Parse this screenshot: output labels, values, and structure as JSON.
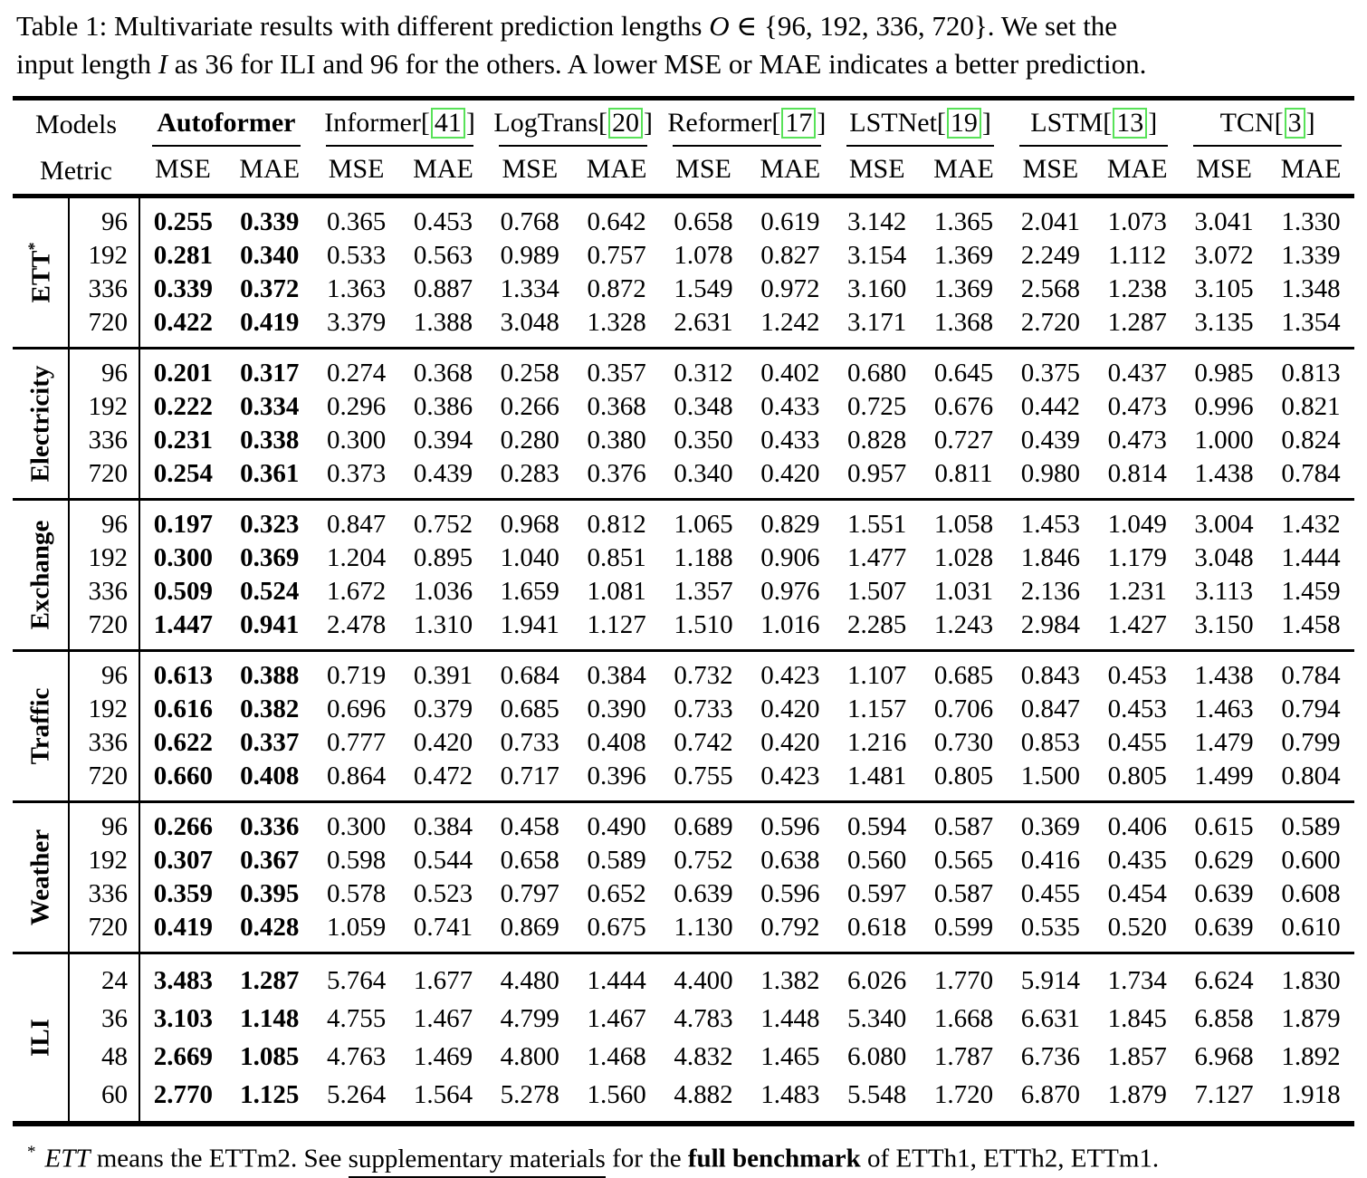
{
  "caption": {
    "lines": [
      {
        "segments": [
          {
            "t": "Table 1: Multivariate results with different prediction lengths ",
            "style": "plain"
          },
          {
            "t": "O",
            "style": "math"
          },
          {
            "t": " ∈ {96, 192, 336, 720}. We set the",
            "style": "plain"
          }
        ]
      },
      {
        "segments": [
          {
            "t": "input length ",
            "style": "plain"
          },
          {
            "t": "I",
            "style": "math"
          },
          {
            "t": " as 36 for ILI and 96 for the others. A lower MSE or MAE indicates a better prediction.",
            "style": "plain"
          }
        ]
      }
    ]
  },
  "table": {
    "corner": {
      "models": "Models",
      "metric": "Metric"
    },
    "cite_brackets": {
      "open": "[",
      "close": "]"
    },
    "link_box_color": "#58e258",
    "metrics": [
      "MSE",
      "MAE"
    ],
    "models": [
      {
        "name": "Autoformer",
        "cite": null,
        "bold": true
      },
      {
        "name": "Informer",
        "cite": "41",
        "bold": false
      },
      {
        "name": "LogTrans",
        "cite": "20",
        "bold": false
      },
      {
        "name": "Reformer",
        "cite": "17",
        "bold": false
      },
      {
        "name": "LSTNet",
        "cite": "19",
        "bold": false
      },
      {
        "name": "LSTM",
        "cite": "13",
        "bold": false
      },
      {
        "name": "TCN",
        "cite": "3",
        "bold": false
      }
    ],
    "blocks": [
      {
        "dataset": "ETT",
        "sup": "*",
        "rows": [
          {
            "len": "96",
            "values": [
              "0.255",
              "0.339",
              "0.365",
              "0.453",
              "0.768",
              "0.642",
              "0.658",
              "0.619",
              "3.142",
              "1.365",
              "2.041",
              "1.073",
              "3.041",
              "1.330"
            ]
          },
          {
            "len": "192",
            "values": [
              "0.281",
              "0.340",
              "0.533",
              "0.563",
              "0.989",
              "0.757",
              "1.078",
              "0.827",
              "3.154",
              "1.369",
              "2.249",
              "1.112",
              "3.072",
              "1.339"
            ]
          },
          {
            "len": "336",
            "values": [
              "0.339",
              "0.372",
              "1.363",
              "0.887",
              "1.334",
              "0.872",
              "1.549",
              "0.972",
              "3.160",
              "1.369",
              "2.568",
              "1.238",
              "3.105",
              "1.348"
            ]
          },
          {
            "len": "720",
            "values": [
              "0.422",
              "0.419",
              "3.379",
              "1.388",
              "3.048",
              "1.328",
              "2.631",
              "1.242",
              "3.171",
              "1.368",
              "2.720",
              "1.287",
              "3.135",
              "1.354"
            ]
          }
        ]
      },
      {
        "dataset": "Electricity",
        "sup": null,
        "rows": [
          {
            "len": "96",
            "values": [
              "0.201",
              "0.317",
              "0.274",
              "0.368",
              "0.258",
              "0.357",
              "0.312",
              "0.402",
              "0.680",
              "0.645",
              "0.375",
              "0.437",
              "0.985",
              "0.813"
            ]
          },
          {
            "len": "192",
            "values": [
              "0.222",
              "0.334",
              "0.296",
              "0.386",
              "0.266",
              "0.368",
              "0.348",
              "0.433",
              "0.725",
              "0.676",
              "0.442",
              "0.473",
              "0.996",
              "0.821"
            ]
          },
          {
            "len": "336",
            "values": [
              "0.231",
              "0.338",
              "0.300",
              "0.394",
              "0.280",
              "0.380",
              "0.350",
              "0.433",
              "0.828",
              "0.727",
              "0.439",
              "0.473",
              "1.000",
              "0.824"
            ]
          },
          {
            "len": "720",
            "values": [
              "0.254",
              "0.361",
              "0.373",
              "0.439",
              "0.283",
              "0.376",
              "0.340",
              "0.420",
              "0.957",
              "0.811",
              "0.980",
              "0.814",
              "1.438",
              "0.784"
            ]
          }
        ]
      },
      {
        "dataset": "Exchange",
        "sup": null,
        "rows": [
          {
            "len": "96",
            "values": [
              "0.197",
              "0.323",
              "0.847",
              "0.752",
              "0.968",
              "0.812",
              "1.065",
              "0.829",
              "1.551",
              "1.058",
              "1.453",
              "1.049",
              "3.004",
              "1.432"
            ]
          },
          {
            "len": "192",
            "values": [
              "0.300",
              "0.369",
              "1.204",
              "0.895",
              "1.040",
              "0.851",
              "1.188",
              "0.906",
              "1.477",
              "1.028",
              "1.846",
              "1.179",
              "3.048",
              "1.444"
            ]
          },
          {
            "len": "336",
            "values": [
              "0.509",
              "0.524",
              "1.672",
              "1.036",
              "1.659",
              "1.081",
              "1.357",
              "0.976",
              "1.507",
              "1.031",
              "2.136",
              "1.231",
              "3.113",
              "1.459"
            ]
          },
          {
            "len": "720",
            "values": [
              "1.447",
              "0.941",
              "2.478",
              "1.310",
              "1.941",
              "1.127",
              "1.510",
              "1.016",
              "2.285",
              "1.243",
              "2.984",
              "1.427",
              "3.150",
              "1.458"
            ]
          }
        ]
      },
      {
        "dataset": "Traffic",
        "sup": null,
        "rows": [
          {
            "len": "96",
            "values": [
              "0.613",
              "0.388",
              "0.719",
              "0.391",
              "0.684",
              "0.384",
              "0.732",
              "0.423",
              "1.107",
              "0.685",
              "0.843",
              "0.453",
              "1.438",
              "0.784"
            ]
          },
          {
            "len": "192",
            "values": [
              "0.616",
              "0.382",
              "0.696",
              "0.379",
              "0.685",
              "0.390",
              "0.733",
              "0.420",
              "1.157",
              "0.706",
              "0.847",
              "0.453",
              "1.463",
              "0.794"
            ]
          },
          {
            "len": "336",
            "values": [
              "0.622",
              "0.337",
              "0.777",
              "0.420",
              "0.733",
              "0.408",
              "0.742",
              "0.420",
              "1.216",
              "0.730",
              "0.853",
              "0.455",
              "1.479",
              "0.799"
            ]
          },
          {
            "len": "720",
            "values": [
              "0.660",
              "0.408",
              "0.864",
              "0.472",
              "0.717",
              "0.396",
              "0.755",
              "0.423",
              "1.481",
              "0.805",
              "1.500",
              "0.805",
              "1.499",
              "0.804"
            ]
          }
        ]
      },
      {
        "dataset": "Weather",
        "sup": null,
        "rows": [
          {
            "len": "96",
            "values": [
              "0.266",
              "0.336",
              "0.300",
              "0.384",
              "0.458",
              "0.490",
              "0.689",
              "0.596",
              "0.594",
              "0.587",
              "0.369",
              "0.406",
              "0.615",
              "0.589"
            ]
          },
          {
            "len": "192",
            "values": [
              "0.307",
              "0.367",
              "0.598",
              "0.544",
              "0.658",
              "0.589",
              "0.752",
              "0.638",
              "0.560",
              "0.565",
              "0.416",
              "0.435",
              "0.629",
              "0.600"
            ]
          },
          {
            "len": "336",
            "values": [
              "0.359",
              "0.395",
              "0.578",
              "0.523",
              "0.797",
              "0.652",
              "0.639",
              "0.596",
              "0.597",
              "0.587",
              "0.455",
              "0.454",
              "0.639",
              "0.608"
            ]
          },
          {
            "len": "720",
            "values": [
              "0.419",
              "0.428",
              "1.059",
              "0.741",
              "0.869",
              "0.675",
              "1.130",
              "0.792",
              "0.618",
              "0.599",
              "0.535",
              "0.520",
              "0.639",
              "0.610"
            ]
          }
        ]
      },
      {
        "dataset": "ILI",
        "sup": null,
        "rows": [
          {
            "len": "24",
            "values": [
              "3.483",
              "1.287",
              "5.764",
              "1.677",
              "4.480",
              "1.444",
              "4.400",
              "1.382",
              "6.026",
              "1.770",
              "5.914",
              "1.734",
              "6.624",
              "1.830"
            ]
          },
          {
            "len": "36",
            "values": [
              "3.103",
              "1.148",
              "4.755",
              "1.467",
              "4.799",
              "1.467",
              "4.783",
              "1.448",
              "5.340",
              "1.668",
              "6.631",
              "1.845",
              "6.858",
              "1.879"
            ]
          },
          {
            "len": "48",
            "values": [
              "2.669",
              "1.085",
              "4.763",
              "1.469",
              "4.800",
              "1.468",
              "4.832",
              "1.465",
              "6.080",
              "1.787",
              "6.736",
              "1.857",
              "6.968",
              "1.892"
            ]
          },
          {
            "len": "60",
            "values": [
              "2.770",
              "1.125",
              "5.264",
              "1.564",
              "5.278",
              "1.560",
              "4.882",
              "1.483",
              "5.548",
              "1.720",
              "6.870",
              "1.879",
              "7.127",
              "1.918"
            ]
          }
        ]
      }
    ]
  },
  "footnote": {
    "marker": "*",
    "segments": [
      {
        "t": "ETT",
        "style": "italic"
      },
      {
        "t": " means the ETTm2. See ",
        "style": "plain"
      },
      {
        "t": "supplementary materials",
        "style": "underline"
      },
      {
        "t": " for the ",
        "style": "plain"
      },
      {
        "t": "full benchmark",
        "style": "bold"
      },
      {
        "t": " of ETTh1, ETTh2, ETTm1.",
        "style": "plain"
      }
    ]
  }
}
